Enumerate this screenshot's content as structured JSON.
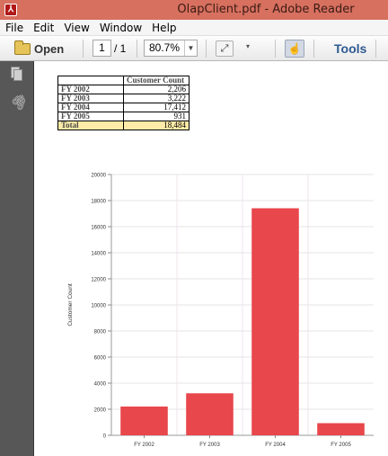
{
  "window": {
    "title": "OlapClient.pdf - Adobe Reader",
    "app_icon": "adobe-reader-icon"
  },
  "menu": [
    "File",
    "Edit",
    "View",
    "Window",
    "Help"
  ],
  "toolbar": {
    "open_label": "Open",
    "current_page": "1",
    "page_total": "/ 1",
    "zoom": "80.7%",
    "tools_label": "Tools"
  },
  "sidebar": {
    "icons": [
      "pages-icon",
      "attachment-icon"
    ]
  },
  "table": {
    "header": [
      "",
      "Customer Count"
    ],
    "rows": [
      {
        "label": "FY 2002",
        "value": "2,206"
      },
      {
        "label": "FY 2003",
        "value": "3,222"
      },
      {
        "label": "FY 2004",
        "value": "17,412"
      },
      {
        "label": "FY 2005",
        "value": "931"
      }
    ],
    "total": {
      "label": "Total",
      "value": "18,484"
    }
  },
  "chart_data": {
    "type": "bar",
    "categories": [
      "FY 2002",
      "FY 2003",
      "FY 2004",
      "FY 2005"
    ],
    "values": [
      2206,
      3222,
      17412,
      931
    ],
    "ylabel": "Customer Count",
    "xlabel": "",
    "ylim": [
      0,
      20000
    ],
    "yticks": [
      0,
      2000,
      4000,
      6000,
      8000,
      10000,
      12000,
      14000,
      16000,
      18000,
      20000
    ],
    "bar_color": "#e8474c",
    "grid": true
  }
}
